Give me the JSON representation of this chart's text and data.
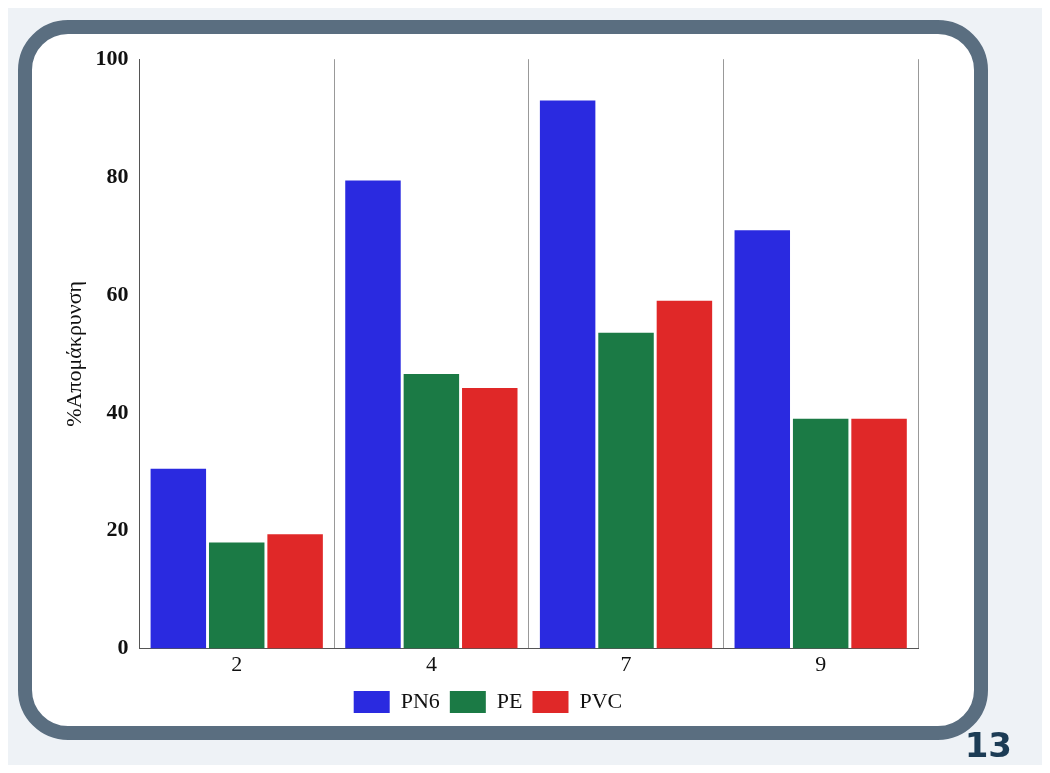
{
  "chart_data": {
    "type": "bar",
    "ylabel": "%Απομάκρυνση",
    "categories": [
      "2",
      "4",
      "7",
      "9"
    ],
    "series": [
      {
        "name": "PN6",
        "color": "#2a2ae0",
        "values": [
          30.5,
          79.4,
          93,
          71
        ]
      },
      {
        "name": "PE",
        "color": "#1b7a45",
        "values": [
          18,
          46.6,
          53.6,
          39
        ]
      },
      {
        "name": "PVC",
        "color": "#e02828",
        "values": [
          19.4,
          44.2,
          59,
          39
        ]
      }
    ],
    "ylim": [
      0,
      100
    ],
    "yticks": [
      0,
      20,
      40,
      60,
      80,
      100
    ],
    "grid": "x",
    "legend": "bottom",
    "annotations": [
      "13"
    ]
  }
}
